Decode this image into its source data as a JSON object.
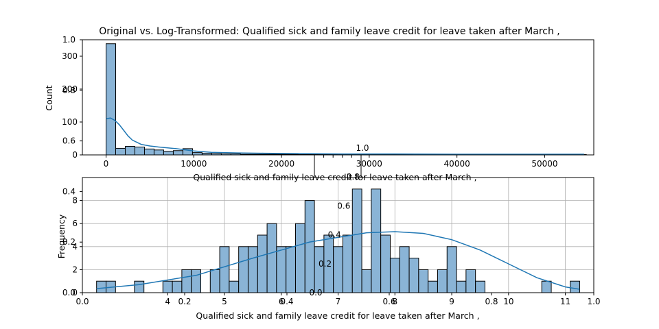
{
  "colors": {
    "bar_fill": "#8ab4d6",
    "bar_edge": "#000000",
    "kde_line": "#1f77b4",
    "grid": "#b0b0b0",
    "axis": "#000000"
  },
  "chart_data": [
    {
      "type": "bar",
      "title": "Original vs. Log-Transformed: Qualified sick and family leave credit for leave taken after March ,",
      "xlabel": "Qualified sick and family leave credit for leave taken after March ,",
      "ylabel": "Count",
      "xlim": [
        -2700,
        55600
      ],
      "ylim": [
        0,
        350
      ],
      "xticks": [
        "0",
        "10000",
        "20000",
        "30000",
        "40000",
        "50000"
      ],
      "xtick_values": [
        0,
        10000,
        20000,
        30000,
        40000,
        50000
      ],
      "yticks": [
        "0",
        "100",
        "200",
        "300"
      ],
      "ytick_values": [
        0,
        100,
        200,
        300
      ],
      "grid": false,
      "bins": {
        "start": 0,
        "width": 1095,
        "counts": [
          338,
          20,
          26,
          24,
          18,
          15,
          11,
          13,
          19,
          7,
          5,
          4,
          3,
          3,
          2,
          2,
          2,
          2,
          2,
          2,
          1,
          1,
          1,
          1,
          1,
          1,
          1,
          1,
          1,
          1,
          1,
          1,
          1,
          1,
          1,
          1,
          1,
          1,
          1,
          1,
          1,
          1,
          1,
          1,
          1,
          1,
          1,
          1,
          1,
          1
        ]
      },
      "kde": {
        "x": [
          0,
          500,
          1000,
          1500,
          2000,
          2500,
          3000,
          4000,
          5000,
          6000,
          8000,
          10000,
          12000,
          15000,
          18000,
          22000,
          27000,
          33000,
          40000,
          48000,
          54500
        ],
        "y": [
          110,
          112,
          105,
          92,
          75,
          58,
          45,
          32,
          27,
          24,
          19,
          12,
          8,
          6,
          5,
          4,
          3,
          3,
          2,
          2,
          2
        ]
      }
    },
    {
      "type": "bar",
      "title": "",
      "xlabel": "Qualified sick and family leave credit for leave taken after March ,",
      "ylabel": "Frequency",
      "xlim": [
        2.5,
        11.5
      ],
      "ylim": [
        0,
        10
      ],
      "xticks": [
        "4",
        "5",
        "6",
        "7",
        "8",
        "9",
        "10",
        "11"
      ],
      "xtick_values": [
        4,
        5,
        6,
        7,
        8,
        9,
        10,
        11
      ],
      "yticks": [
        "0",
        "2",
        "4",
        "6",
        "8"
      ],
      "ytick_values": [
        0,
        2,
        4,
        6,
        8
      ],
      "grid": true,
      "bins": {
        "start": 2.75,
        "width": 0.1667,
        "counts": [
          1,
          1,
          0,
          0,
          1,
          0,
          0,
          1,
          1,
          2,
          2,
          0,
          2,
          4,
          1,
          4,
          4,
          5,
          6,
          4,
          4,
          6,
          8,
          4,
          5,
          4,
          5,
          9,
          2,
          9,
          5,
          3,
          4,
          3,
          2,
          1,
          2,
          4,
          1,
          2,
          1,
          0,
          0,
          0,
          0,
          0,
          0,
          1,
          0,
          0,
          1
        ]
      },
      "kde": {
        "x": [
          2.75,
          3.5,
          4.5,
          5.5,
          6.5,
          7.5,
          8.0,
          8.5,
          9.0,
          9.5,
          10.0,
          10.5,
          11.0,
          11.25
        ],
        "y": [
          0.35,
          0.7,
          1.5,
          3.0,
          4.4,
          5.2,
          5.3,
          5.15,
          4.6,
          3.7,
          2.5,
          1.3,
          0.5,
          0.3
        ]
      }
    }
  ],
  "overlay_axes": {
    "yticks": [
      "0.0",
      "0.2",
      "0.4",
      "0.6",
      "0.8",
      "1.0"
    ],
    "xticks": [
      "0.0",
      "0.2",
      "0.4",
      "0.6",
      "0.8",
      "1.0"
    ],
    "yticks_mid": [
      "0.0",
      "0.2",
      "0.4",
      "0.6",
      "0.8",
      "1.0"
    ],
    "xticks_mid": [
      "0.0",
      "0.2",
      "0.4",
      "0.6",
      "0.8",
      "1.0"
    ]
  }
}
